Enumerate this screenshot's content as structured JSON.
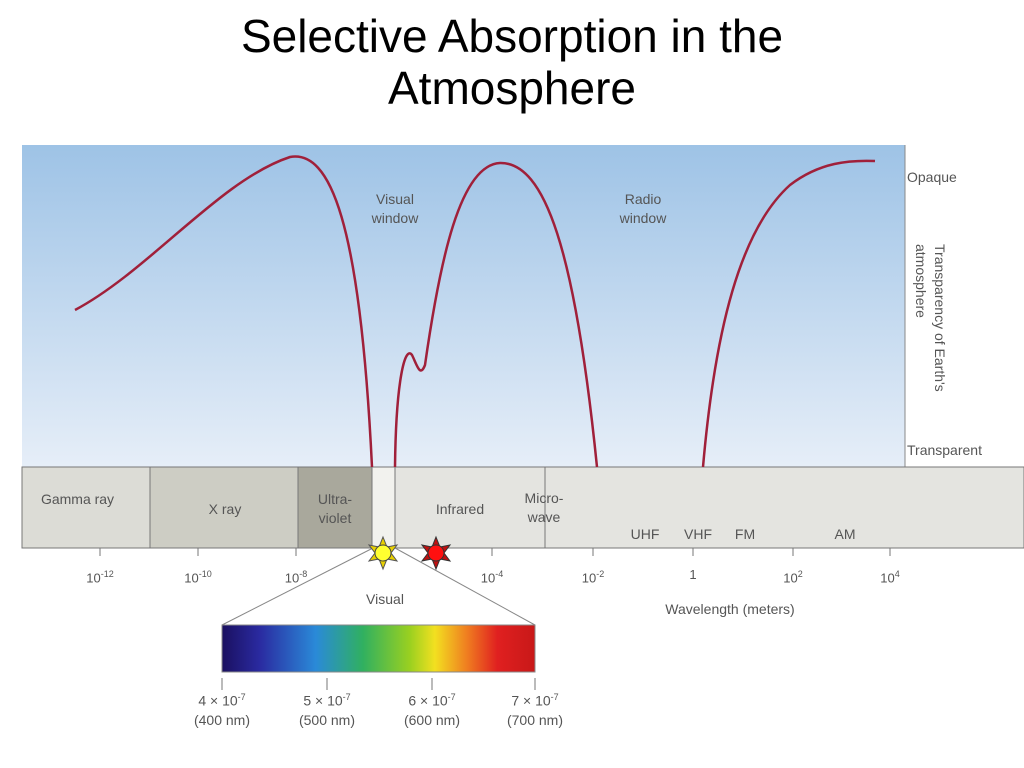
{
  "title": "Selective Absorption in the Atmosphere",
  "windows": [
    "Visual window",
    "Radio window"
  ],
  "opacity_scale": {
    "top": "Opaque",
    "axis": "Transparency of Earth's atmosphere",
    "bottom": "Transparent"
  },
  "bands": [
    "Gamma ray",
    "X ray",
    "Ultra-violet",
    "Infrared",
    "Micro-wave"
  ],
  "radio_bands": [
    "UHF",
    "VHF",
    "FM",
    "AM"
  ],
  "wavelength_ticks": [
    {
      "base": "10",
      "exp": "-12"
    },
    {
      "base": "10",
      "exp": "-10"
    },
    {
      "base": "10",
      "exp": "-8"
    },
    {
      "base": "10",
      "exp": "-4"
    },
    {
      "base": "10",
      "exp": "-2"
    },
    {
      "base": "1"
    },
    {
      "base": "10",
      "exp": "2"
    },
    {
      "base": "10",
      "exp": "4"
    }
  ],
  "wavelength_axis": "Wavelength (meters)",
  "visual_label": "Visual",
  "spectrum_ticks": [
    {
      "coef": "4 × 10",
      "exp": "-7",
      "nm": "(400 nm)"
    },
    {
      "coef": "5 × 10",
      "exp": "-7",
      "nm": "(500 nm)"
    },
    {
      "coef": "6 × 10",
      "exp": "-7",
      "nm": "(600 nm)"
    },
    {
      "coef": "7 × 10",
      "exp": "-7",
      "nm": "(700 nm)"
    }
  ]
}
